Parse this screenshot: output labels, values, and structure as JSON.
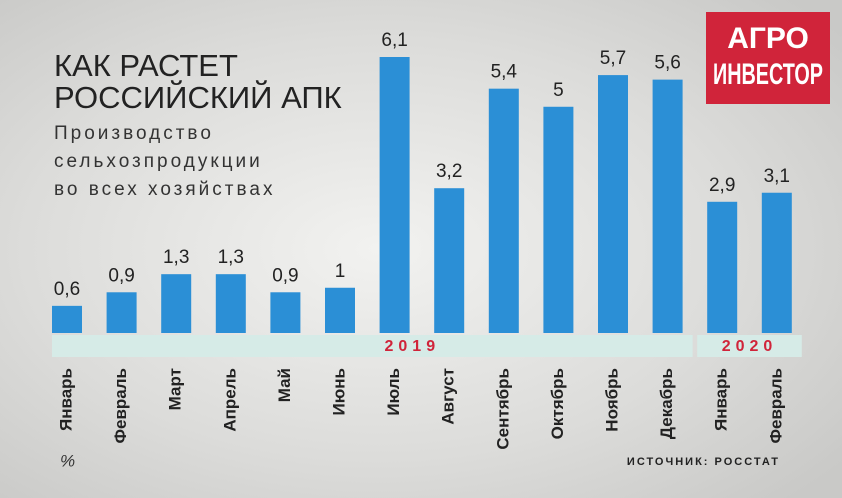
{
  "chart_data": {
    "type": "bar",
    "title": [
      "КАК РАСТЕТ",
      "РОССИЙСКИЙ АПК"
    ],
    "subtitle": [
      "Производство",
      "сельхозпродукции",
      "во всех хозяйствах"
    ],
    "logo": [
      "АГРО",
      "ИНВЕСТОР"
    ],
    "categories": [
      "Январь",
      "Февраль",
      "Март",
      "Апрель",
      "Май",
      "Июнь",
      "Июль",
      "Август",
      "Сентябрь",
      "Октябрь",
      "Ноябрь",
      "Декабрь",
      "Январь",
      "Февраль"
    ],
    "values": [
      0.6,
      0.9,
      1.3,
      1.3,
      0.9,
      1,
      6.1,
      3.2,
      5.4,
      5,
      5.7,
      5.6,
      2.9,
      3.1
    ],
    "value_labels": [
      "0,6",
      "0,9",
      "1,3",
      "1,3",
      "0,9",
      "1",
      "6,1",
      "3,2",
      "5,4",
      "5",
      "5,7",
      "5,6",
      "2,9",
      "3,1"
    ],
    "years": [
      "2019",
      "2020"
    ],
    "unit": "%",
    "source": "ИСТОЧНИК: РОССТАТ",
    "color": "#2b8fd6"
  }
}
